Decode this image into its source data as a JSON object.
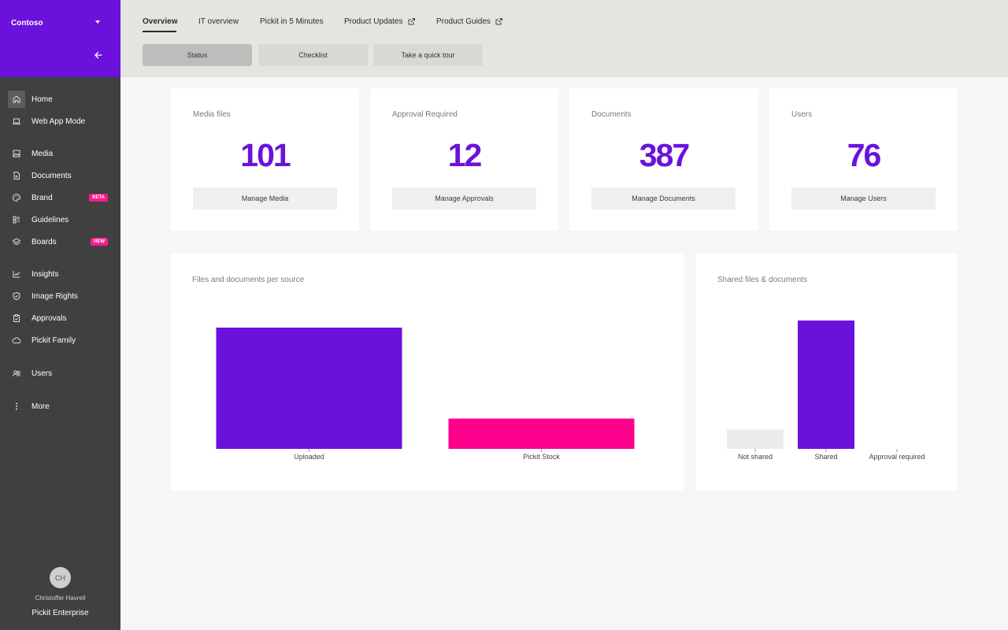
{
  "sidebar": {
    "org_name": "Contoso",
    "items": [
      {
        "label": "Home",
        "icon": "home-icon",
        "active": true
      },
      {
        "label": "Web App Mode",
        "icon": "laptop-icon"
      },
      {
        "label": "Media",
        "icon": "image-icon"
      },
      {
        "label": "Documents",
        "icon": "document-icon"
      },
      {
        "label": "Brand",
        "icon": "palette-icon",
        "badge": "BETA"
      },
      {
        "label": "Guidelines",
        "icon": "guidelines-icon"
      },
      {
        "label": "Boards",
        "icon": "boards-icon",
        "badge": "NEW"
      },
      {
        "label": "Insights",
        "icon": "insights-icon"
      },
      {
        "label": "Image Rights",
        "icon": "shield-icon"
      },
      {
        "label": "Approvals",
        "icon": "clipboard-icon"
      },
      {
        "label": "Pickit Family",
        "icon": "cloud-icon"
      },
      {
        "label": "Users",
        "icon": "users-icon"
      },
      {
        "label": "More",
        "icon": "more-icon"
      }
    ],
    "user": {
      "initials": "CH",
      "name": "Christoffer Havrell",
      "plan": "Pickit Enterprise"
    }
  },
  "tabs": [
    "Overview",
    "IT overview",
    "Pickit in 5 Minutes",
    "Product Updates",
    "Product Guides"
  ],
  "subtabs": [
    "Status",
    "Checklist",
    "Take a quick tour"
  ],
  "stats": [
    {
      "title": "Media files",
      "value": "101",
      "action": "Manage Media"
    },
    {
      "title": "Approval Required",
      "value": "12",
      "action": "Manage Approvals"
    },
    {
      "title": "Documents",
      "value": "387",
      "action": "Manage Documents"
    },
    {
      "title": "Users",
      "value": "76",
      "action": "Manage Users"
    }
  ],
  "colors": {
    "brand": "#6a12dc",
    "accent": "#ff008c",
    "muted": "#ebebeb"
  },
  "chart_data": [
    {
      "type": "bar",
      "title": "Files and documents per source",
      "categories": [
        "Uploaded",
        "Pickit Stock"
      ],
      "values": [
        100,
        25
      ],
      "colors": [
        "#6a12dc",
        "#ff008c"
      ],
      "ylim": [
        0,
        100
      ],
      "grid": false
    },
    {
      "type": "bar",
      "title": "Shared files & documents",
      "categories": [
        "Not shared",
        "Shared",
        "Approval required"
      ],
      "values": [
        15,
        100,
        0
      ],
      "colors": [
        "#ebebeb",
        "#6a12dc",
        "#ebebeb"
      ],
      "ylim": [
        0,
        100
      ],
      "grid": false
    }
  ]
}
